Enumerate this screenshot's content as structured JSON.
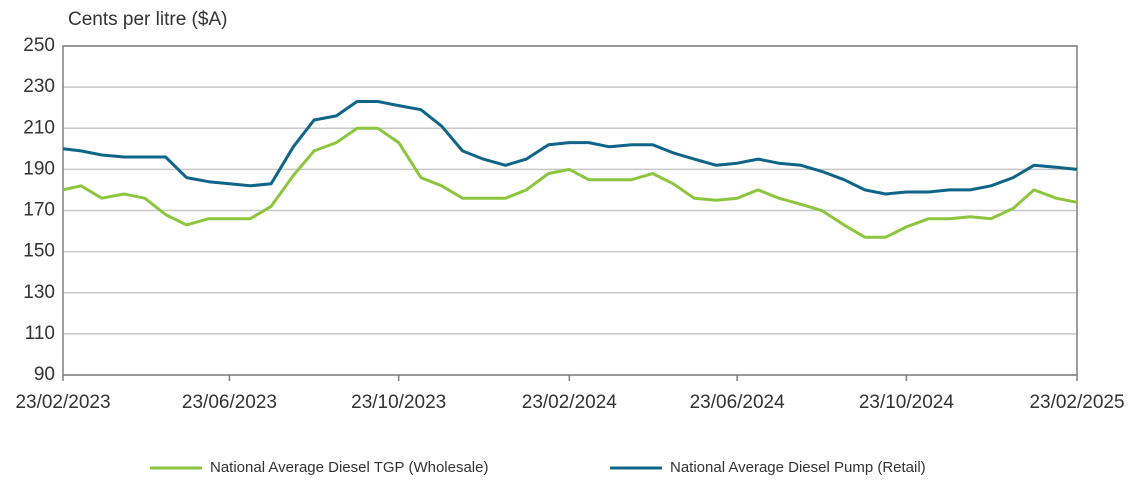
{
  "chart_data": {
    "type": "line",
    "y_label": "Cents per litre ($A)",
    "x": [
      "2023-02-23",
      "2023-03-08",
      "2023-03-23",
      "2023-04-08",
      "2023-04-23",
      "2023-05-08",
      "2023-05-23",
      "2023-06-08",
      "2023-06-23",
      "2023-07-08",
      "2023-07-23",
      "2023-08-08",
      "2023-08-23",
      "2023-09-08",
      "2023-09-23",
      "2023-10-08",
      "2023-10-23",
      "2023-11-08",
      "2023-11-23",
      "2023-12-08",
      "2023-12-23",
      "2024-01-08",
      "2024-01-23",
      "2024-02-08",
      "2024-02-23",
      "2024-03-08",
      "2024-03-23",
      "2024-04-08",
      "2024-04-23",
      "2024-05-08",
      "2024-05-23",
      "2024-06-08",
      "2024-06-23",
      "2024-07-08",
      "2024-07-23",
      "2024-08-08",
      "2024-08-23",
      "2024-09-08",
      "2024-09-23",
      "2024-10-08",
      "2024-10-23",
      "2024-11-08",
      "2024-11-23",
      "2024-12-08",
      "2024-12-23",
      "2025-01-08",
      "2025-01-23",
      "2025-02-08",
      "2025-02-23"
    ],
    "series": [
      {
        "name": "National Average Diesel TGP (Wholesale)",
        "color": "#8cc63f",
        "values": [
          180,
          182,
          176,
          178,
          176,
          168,
          163,
          166,
          166,
          166,
          172,
          187,
          199,
          203,
          210,
          210,
          203,
          186,
          182,
          176,
          176,
          176,
          180,
          188,
          190,
          185,
          185,
          185,
          188,
          183,
          176,
          175,
          176,
          180,
          176,
          173,
          170,
          163,
          157,
          157,
          162,
          166,
          166,
          167,
          166,
          171,
          180,
          176,
          174
        ]
      },
      {
        "name": "National Average Diesel Pump (Retail)",
        "color": "#0e6587",
        "values": [
          200,
          199,
          197,
          196,
          196,
          196,
          186,
          184,
          183,
          182,
          183,
          201,
          214,
          216,
          223,
          223,
          221,
          219,
          211,
          199,
          195,
          192,
          195,
          202,
          203,
          203,
          201,
          202,
          202,
          198,
          195,
          192,
          193,
          195,
          193,
          192,
          189,
          185,
          180,
          178,
          179,
          179,
          180,
          180,
          182,
          186,
          192,
          191,
          190
        ]
      }
    ],
    "xlim": [
      "2023-02-23",
      "2025-02-23"
    ],
    "xticks": [
      {
        "value": "2023-02-23",
        "label": "23/02/2023"
      },
      {
        "value": "2023-06-23",
        "label": "23/06/2023"
      },
      {
        "value": "2023-10-23",
        "label": "23/10/2023"
      },
      {
        "value": "2024-02-23",
        "label": "23/02/2024"
      },
      {
        "value": "2024-06-23",
        "label": "23/06/2024"
      },
      {
        "value": "2024-10-23",
        "label": "23/10/2024"
      },
      {
        "value": "2025-02-23",
        "label": "23/02/2025"
      }
    ],
    "ylim": [
      90,
      250
    ],
    "yticks": [
      90,
      110,
      130,
      150,
      170,
      190,
      210,
      230,
      250
    ],
    "grid": true,
    "legend": "bottom"
  }
}
